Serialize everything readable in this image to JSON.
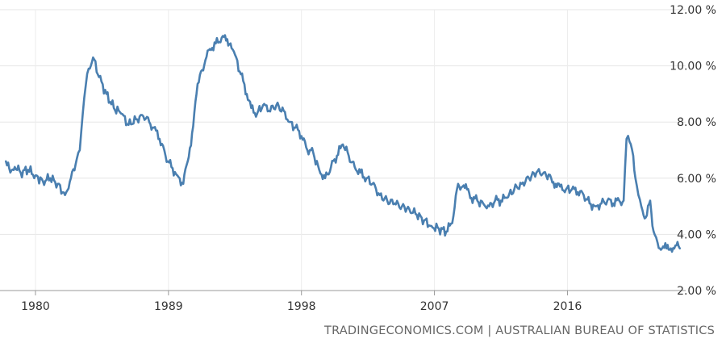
{
  "chart_data": {
    "type": "line",
    "title": "",
    "xlabel": "",
    "ylabel": "",
    "xlim": [
      1977.6,
      2024.0
    ],
    "ylim": [
      2,
      12
    ],
    "x_ticks": [
      1980,
      1989,
      1998,
      2007,
      2016
    ],
    "x_tick_labels": [
      "1980",
      "1989",
      "1998",
      "2007",
      "2016"
    ],
    "y_ticks": [
      2,
      4,
      6,
      8,
      10,
      12
    ],
    "y_tick_labels": [
      "2.00 %",
      "4.00 %",
      "6.00 %",
      "8.00 %",
      "10.00 %",
      "12.00 %"
    ],
    "grid": true,
    "series_color": "#4a7fb0",
    "series": [
      {
        "x": [
          1978.0,
          1978.3,
          1978.6,
          1979.0,
          1979.5,
          1980.0,
          1980.5,
          1981.0,
          1981.5,
          1982.0,
          1982.4,
          1982.8,
          1983.0,
          1983.2,
          1983.4,
          1983.6,
          1983.9,
          1984.3,
          1984.8,
          1985.3,
          1985.8,
          1986.3,
          1986.8,
          1987.3,
          1987.7,
          1988.0,
          1988.4,
          1988.8,
          1989.2,
          1989.6,
          1990.0,
          1990.3,
          1990.6,
          1990.9,
          1991.2,
          1991.5,
          1991.8,
          1992.2,
          1992.6,
          1992.9,
          1993.2,
          1993.5,
          1993.9,
          1994.3,
          1994.6,
          1995.0,
          1995.4,
          1995.8,
          1996.3,
          1996.8,
          1997.2,
          1997.6,
          1998.0,
          1998.4,
          1998.8,
          1999.2,
          1999.6,
          2000.0,
          2000.4,
          2000.8,
          2001.2,
          2001.6,
          2002.0,
          2002.4,
          2002.8,
          2003.3,
          2003.8,
          2004.3,
          2004.8,
          2005.3,
          2005.8,
          2006.3,
          2006.8,
          2007.3,
          2007.8,
          2008.2,
          2008.6,
          2008.9,
          2009.2,
          2009.5,
          2009.9,
          2010.3,
          2010.7,
          2011.1,
          2011.5,
          2011.9,
          2012.4,
          2012.9,
          2013.4,
          2013.9,
          2014.4,
          2014.9,
          2015.2,
          2015.5,
          2015.9,
          2016.3,
          2016.7,
          2017.1,
          2017.5,
          2017.9,
          2018.3,
          2018.7,
          2019.1,
          2019.5,
          2019.8,
          2020.0,
          2020.2,
          2020.45,
          2020.6,
          2020.8,
          2021.0,
          2021.3,
          2021.6,
          2021.75,
          2021.9,
          2022.1,
          2022.4,
          2022.7,
          2023.0,
          2023.3,
          2023.6
        ],
        "y": [
          6.6,
          6.2,
          6.4,
          6.2,
          6.3,
          6.1,
          5.9,
          6.0,
          5.8,
          5.4,
          6.0,
          6.7,
          7.0,
          8.3,
          9.3,
          9.9,
          10.3,
          9.6,
          9.0,
          8.5,
          8.3,
          7.9,
          8.1,
          8.2,
          8.0,
          7.8,
          7.4,
          6.8,
          6.4,
          6.1,
          5.8,
          6.6,
          7.6,
          9.0,
          9.8,
          10.2,
          10.6,
          10.8,
          11.0,
          10.9,
          10.8,
          10.4,
          9.7,
          9.0,
          8.5,
          8.3,
          8.6,
          8.4,
          8.6,
          8.4,
          8.0,
          7.8,
          7.5,
          7.0,
          6.9,
          6.3,
          6.0,
          6.4,
          6.8,
          7.2,
          6.8,
          6.4,
          6.2,
          6.0,
          5.8,
          5.4,
          5.2,
          5.1,
          5.0,
          4.9,
          4.7,
          4.5,
          4.3,
          4.2,
          4.1,
          4.4,
          5.8,
          5.7,
          5.6,
          5.3,
          5.2,
          5.1,
          5.0,
          5.2,
          5.2,
          5.3,
          5.6,
          5.8,
          6.0,
          6.2,
          6.2,
          6.0,
          5.8,
          5.7,
          5.6,
          5.6,
          5.5,
          5.4,
          5.1,
          5.0,
          5.1,
          5.2,
          5.1,
          5.2,
          5.2,
          7.4,
          7.3,
          6.8,
          6.0,
          5.4,
          5.0,
          4.6,
          5.2,
          4.3,
          4.0,
          3.7,
          3.5,
          3.5,
          3.5,
          3.6,
          3.5
        ]
      }
    ]
  },
  "footer": {
    "source": "TRADINGECONOMICS.COM  |  AUSTRALIAN BUREAU OF STATISTICS"
  }
}
